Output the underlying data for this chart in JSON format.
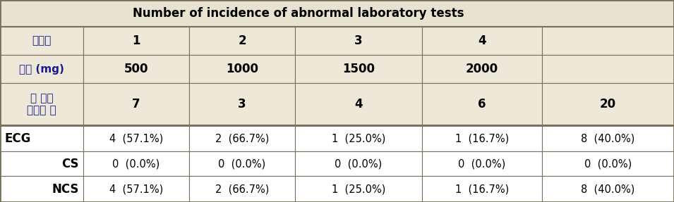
{
  "title": "Number of incidence of abnormal laboratory tests",
  "title_bg": "#e8e2d0",
  "subheader_bg": "#ede8d8",
  "data_bg": "#ffffff",
  "border_color": "#7a7060",
  "korean_color": "#1a1a8c",
  "row1_label": "코호트",
  "row1_values": [
    "1",
    "2",
    "3",
    "4",
    ""
  ],
  "row2_label": "용량 (mg)",
  "row2_values": [
    "500",
    "1000",
    "1500",
    "2000",
    ""
  ],
  "row3_label": "총 분석\n대상자 수",
  "row3_values": [
    "7",
    "3",
    "4",
    "6",
    "20"
  ],
  "ecg_label": "ECG",
  "ecg_values": [
    "4  (57.1%)",
    "2  (66.7%)",
    "1  (25.0%)",
    "1  (16.7%)",
    "8  (40.0%)"
  ],
  "cs_label": "CS",
  "cs_values": [
    "0  (0.0%)",
    "0  (0.0%)",
    "0  (0.0%)",
    "0  (0.0%)",
    "0  (0.0%)"
  ],
  "ncs_label": "NCS",
  "ncs_values": [
    "4  (57.1%)",
    "2  (66.7%)",
    "1  (25.0%)",
    "1  (16.7%)",
    "8  (40.0%)"
  ]
}
